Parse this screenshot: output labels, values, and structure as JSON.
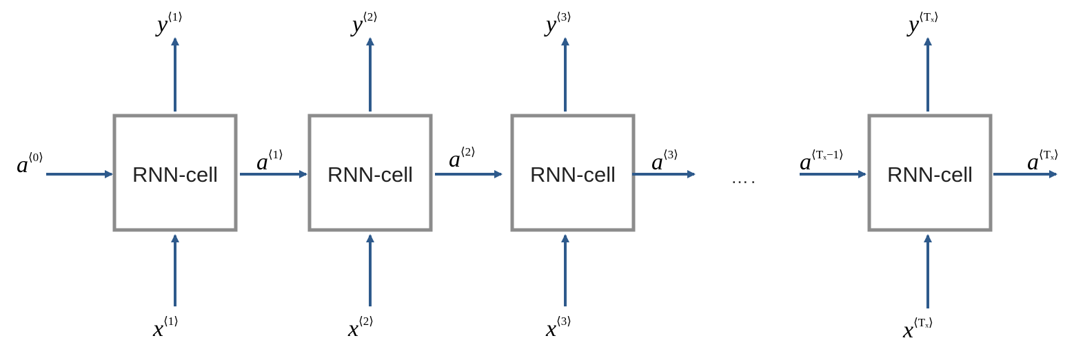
{
  "cells": [
    {
      "label": "RNN-cell",
      "x_var": "x",
      "x_sup": "⟨1⟩",
      "y_var": "y",
      "y_sup": "⟨1⟩"
    },
    {
      "label": "RNN-cell",
      "x_var": "x",
      "x_sup": "⟨2⟩",
      "y_var": "y",
      "y_sup": "⟨2⟩"
    },
    {
      "label": "RNN-cell",
      "x_var": "x",
      "x_sup": "⟨3⟩",
      "y_var": "y",
      "y_sup": "⟨3⟩"
    },
    {
      "label": "RNN-cell",
      "x_var": "x",
      "x_sup": "⟨Tₓ⟩",
      "y_var": "y",
      "y_sup": "⟨Tₓ⟩"
    }
  ],
  "activations": [
    {
      "var": "a",
      "sup": "⟨0⟩"
    },
    {
      "var": "a",
      "sup": "⟨1⟩"
    },
    {
      "var": "a",
      "sup": "⟨2⟩"
    },
    {
      "var": "a",
      "sup": "⟨3⟩"
    },
    {
      "var": "a",
      "sup": "⟨Tₓ−1⟩"
    },
    {
      "var": "a",
      "sup": "⟨Tₓ⟩"
    }
  ],
  "ellipsis": "….",
  "colors": {
    "arrow": "#2e5a8c",
    "box": "#8c8c8c"
  }
}
